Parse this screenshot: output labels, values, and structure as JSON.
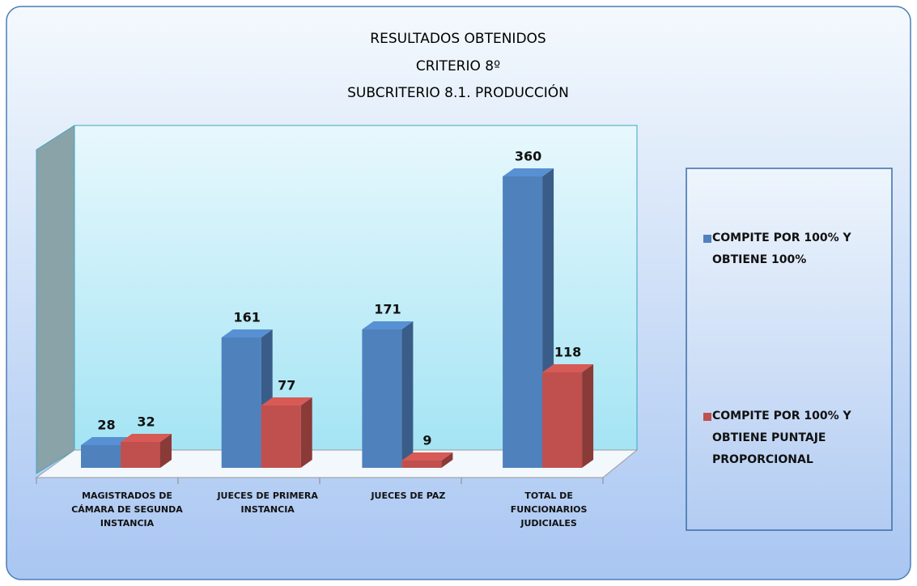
{
  "chart_data": {
    "type": "bar3d",
    "title": [
      "RESULTADOS OBTENIDOS",
      "CRITERIO 8º",
      "SUBCRITERIO 8.1. PRODUCCIÓN"
    ],
    "categories": [
      "MAGISTRADOS DE CÁMARA DE SEGUNDA INSTANCIA",
      "JUECES DE PRIMERA INSTANCIA",
      "JUECES DE PAZ",
      "TOTAL DE FUNCIONARIOS JUDICIALES"
    ],
    "series": [
      {
        "name": "COMPITE POR 100% Y OBTIENE 100%",
        "color": "#4f81bd",
        "values": [
          28,
          161,
          171,
          360
        ]
      },
      {
        "name": "COMPITE POR 100% Y OBTIENE PUNTAJE PROPORCIONAL",
        "color": "#c0504d",
        "values": [
          32,
          77,
          9,
          118
        ]
      }
    ],
    "legend": "right"
  }
}
